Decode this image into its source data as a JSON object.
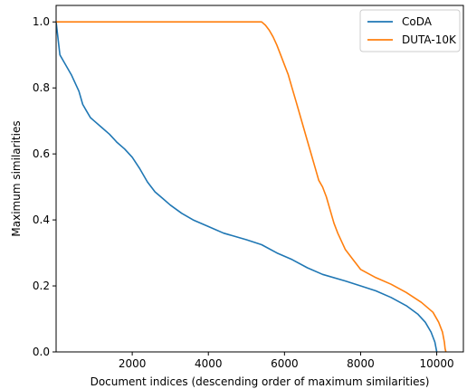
{
  "chart_data": {
    "type": "line",
    "xlabel": "Document indices (descending order of maximum similarities)",
    "ylabel": "Maximum similarities",
    "xlim": [
      0,
      10700
    ],
    "ylim": [
      0,
      1.05
    ],
    "x_ticks": [
      2000,
      4000,
      6000,
      8000,
      10000
    ],
    "x_tick_labels": [
      "2000",
      "4000",
      "6000",
      "8000",
      "10000"
    ],
    "y_ticks": [
      0.0,
      0.2,
      0.4,
      0.6,
      0.8,
      1.0
    ],
    "y_tick_labels": [
      "0.0",
      "0.2",
      "0.4",
      "0.6",
      "0.8",
      "1.0"
    ],
    "grid": false,
    "legend_position": "top-right",
    "series": [
      {
        "name": "CoDA",
        "color": "#1f77b4",
        "x": [
          0,
          50,
          100,
          200,
          400,
          600,
          700,
          800,
          900,
          1000,
          1200,
          1400,
          1600,
          1800,
          2000,
          2200,
          2400,
          2500,
          2600,
          2800,
          3000,
          3300,
          3600,
          4000,
          4400,
          5000,
          5400,
          5800,
          6200,
          6600,
          7000,
          7600,
          8000,
          8400,
          8800,
          9200,
          9500,
          9700,
          9850,
          9950,
          10000
        ],
        "y": [
          1.0,
          0.95,
          0.9,
          0.88,
          0.84,
          0.79,
          0.75,
          0.73,
          0.71,
          0.7,
          0.68,
          0.66,
          0.635,
          0.615,
          0.59,
          0.555,
          0.515,
          0.5,
          0.485,
          0.465,
          0.445,
          0.42,
          0.4,
          0.38,
          0.36,
          0.34,
          0.325,
          0.3,
          0.28,
          0.255,
          0.235,
          0.215,
          0.2,
          0.185,
          0.165,
          0.14,
          0.115,
          0.09,
          0.06,
          0.03,
          0.0
        ]
      },
      {
        "name": "DUTA-10K",
        "color": "#ff7f0e",
        "x": [
          0,
          5300,
          5400,
          5500,
          5600,
          5700,
          5800,
          5900,
          6000,
          6100,
          6200,
          6300,
          6400,
          6500,
          6600,
          6700,
          6800,
          6900,
          7000,
          7100,
          7200,
          7300,
          7400,
          7500,
          7600,
          7800,
          8000,
          8400,
          8800,
          9200,
          9600,
          9900,
          10050,
          10150,
          10200,
          10220,
          10240
        ],
        "y": [
          1.0,
          1.0,
          1.0,
          0.99,
          0.975,
          0.955,
          0.93,
          0.9,
          0.87,
          0.84,
          0.8,
          0.76,
          0.72,
          0.68,
          0.64,
          0.6,
          0.56,
          0.52,
          0.5,
          0.47,
          0.43,
          0.39,
          0.36,
          0.335,
          0.31,
          0.28,
          0.25,
          0.225,
          0.205,
          0.18,
          0.15,
          0.12,
          0.09,
          0.06,
          0.03,
          0.01,
          0.0
        ]
      }
    ]
  }
}
